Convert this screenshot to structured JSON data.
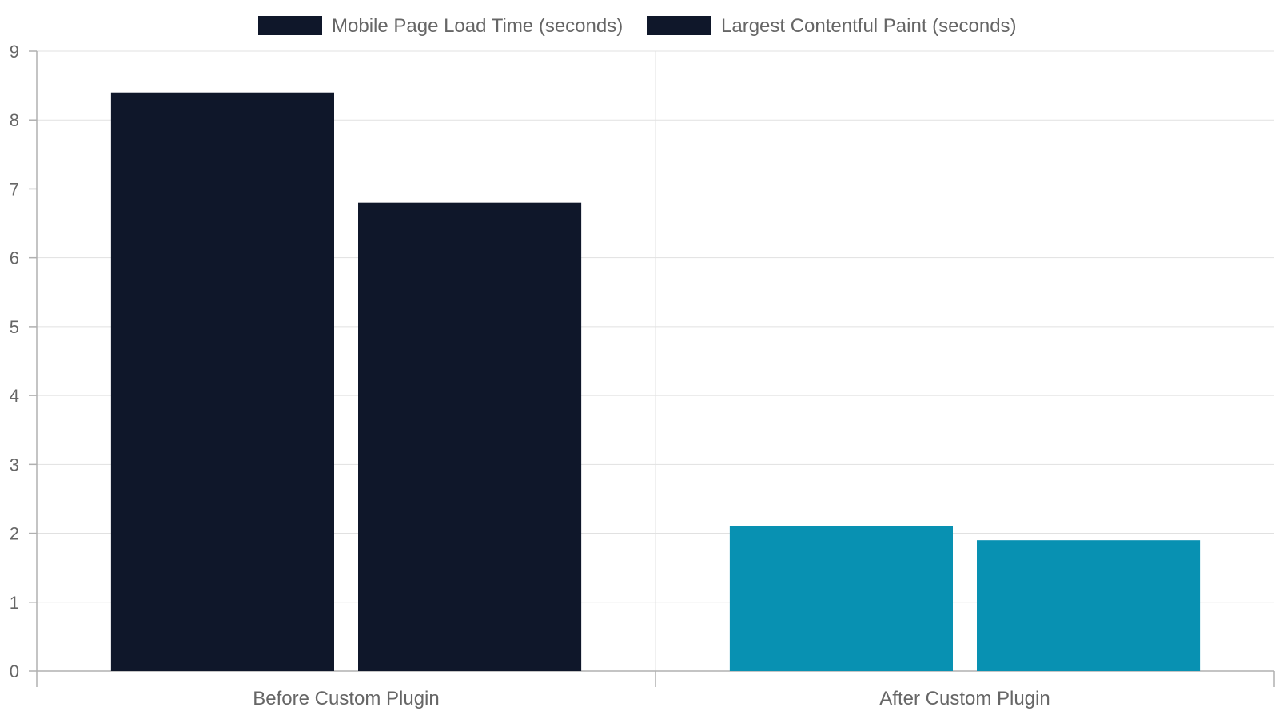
{
  "chart_data": {
    "type": "bar",
    "categories": [
      "Before Custom Plugin",
      "After Custom Plugin"
    ],
    "series": [
      {
        "name": "Mobile Page Load Time (seconds)",
        "values": [
          8.4,
          2.1
        ]
      },
      {
        "name": "Largest Contentful Paint (seconds)",
        "values": [
          6.8,
          1.9
        ]
      }
    ],
    "category_colors": [
      "#0f172a",
      "#0891b2"
    ],
    "legend_color": "#0f172a",
    "ylim": [
      0,
      9
    ],
    "yticks": [
      "0",
      "1",
      "2",
      "3",
      "4",
      "5",
      "6",
      "7",
      "8",
      "9"
    ],
    "grid": true,
    "legend_position": "top-center"
  }
}
